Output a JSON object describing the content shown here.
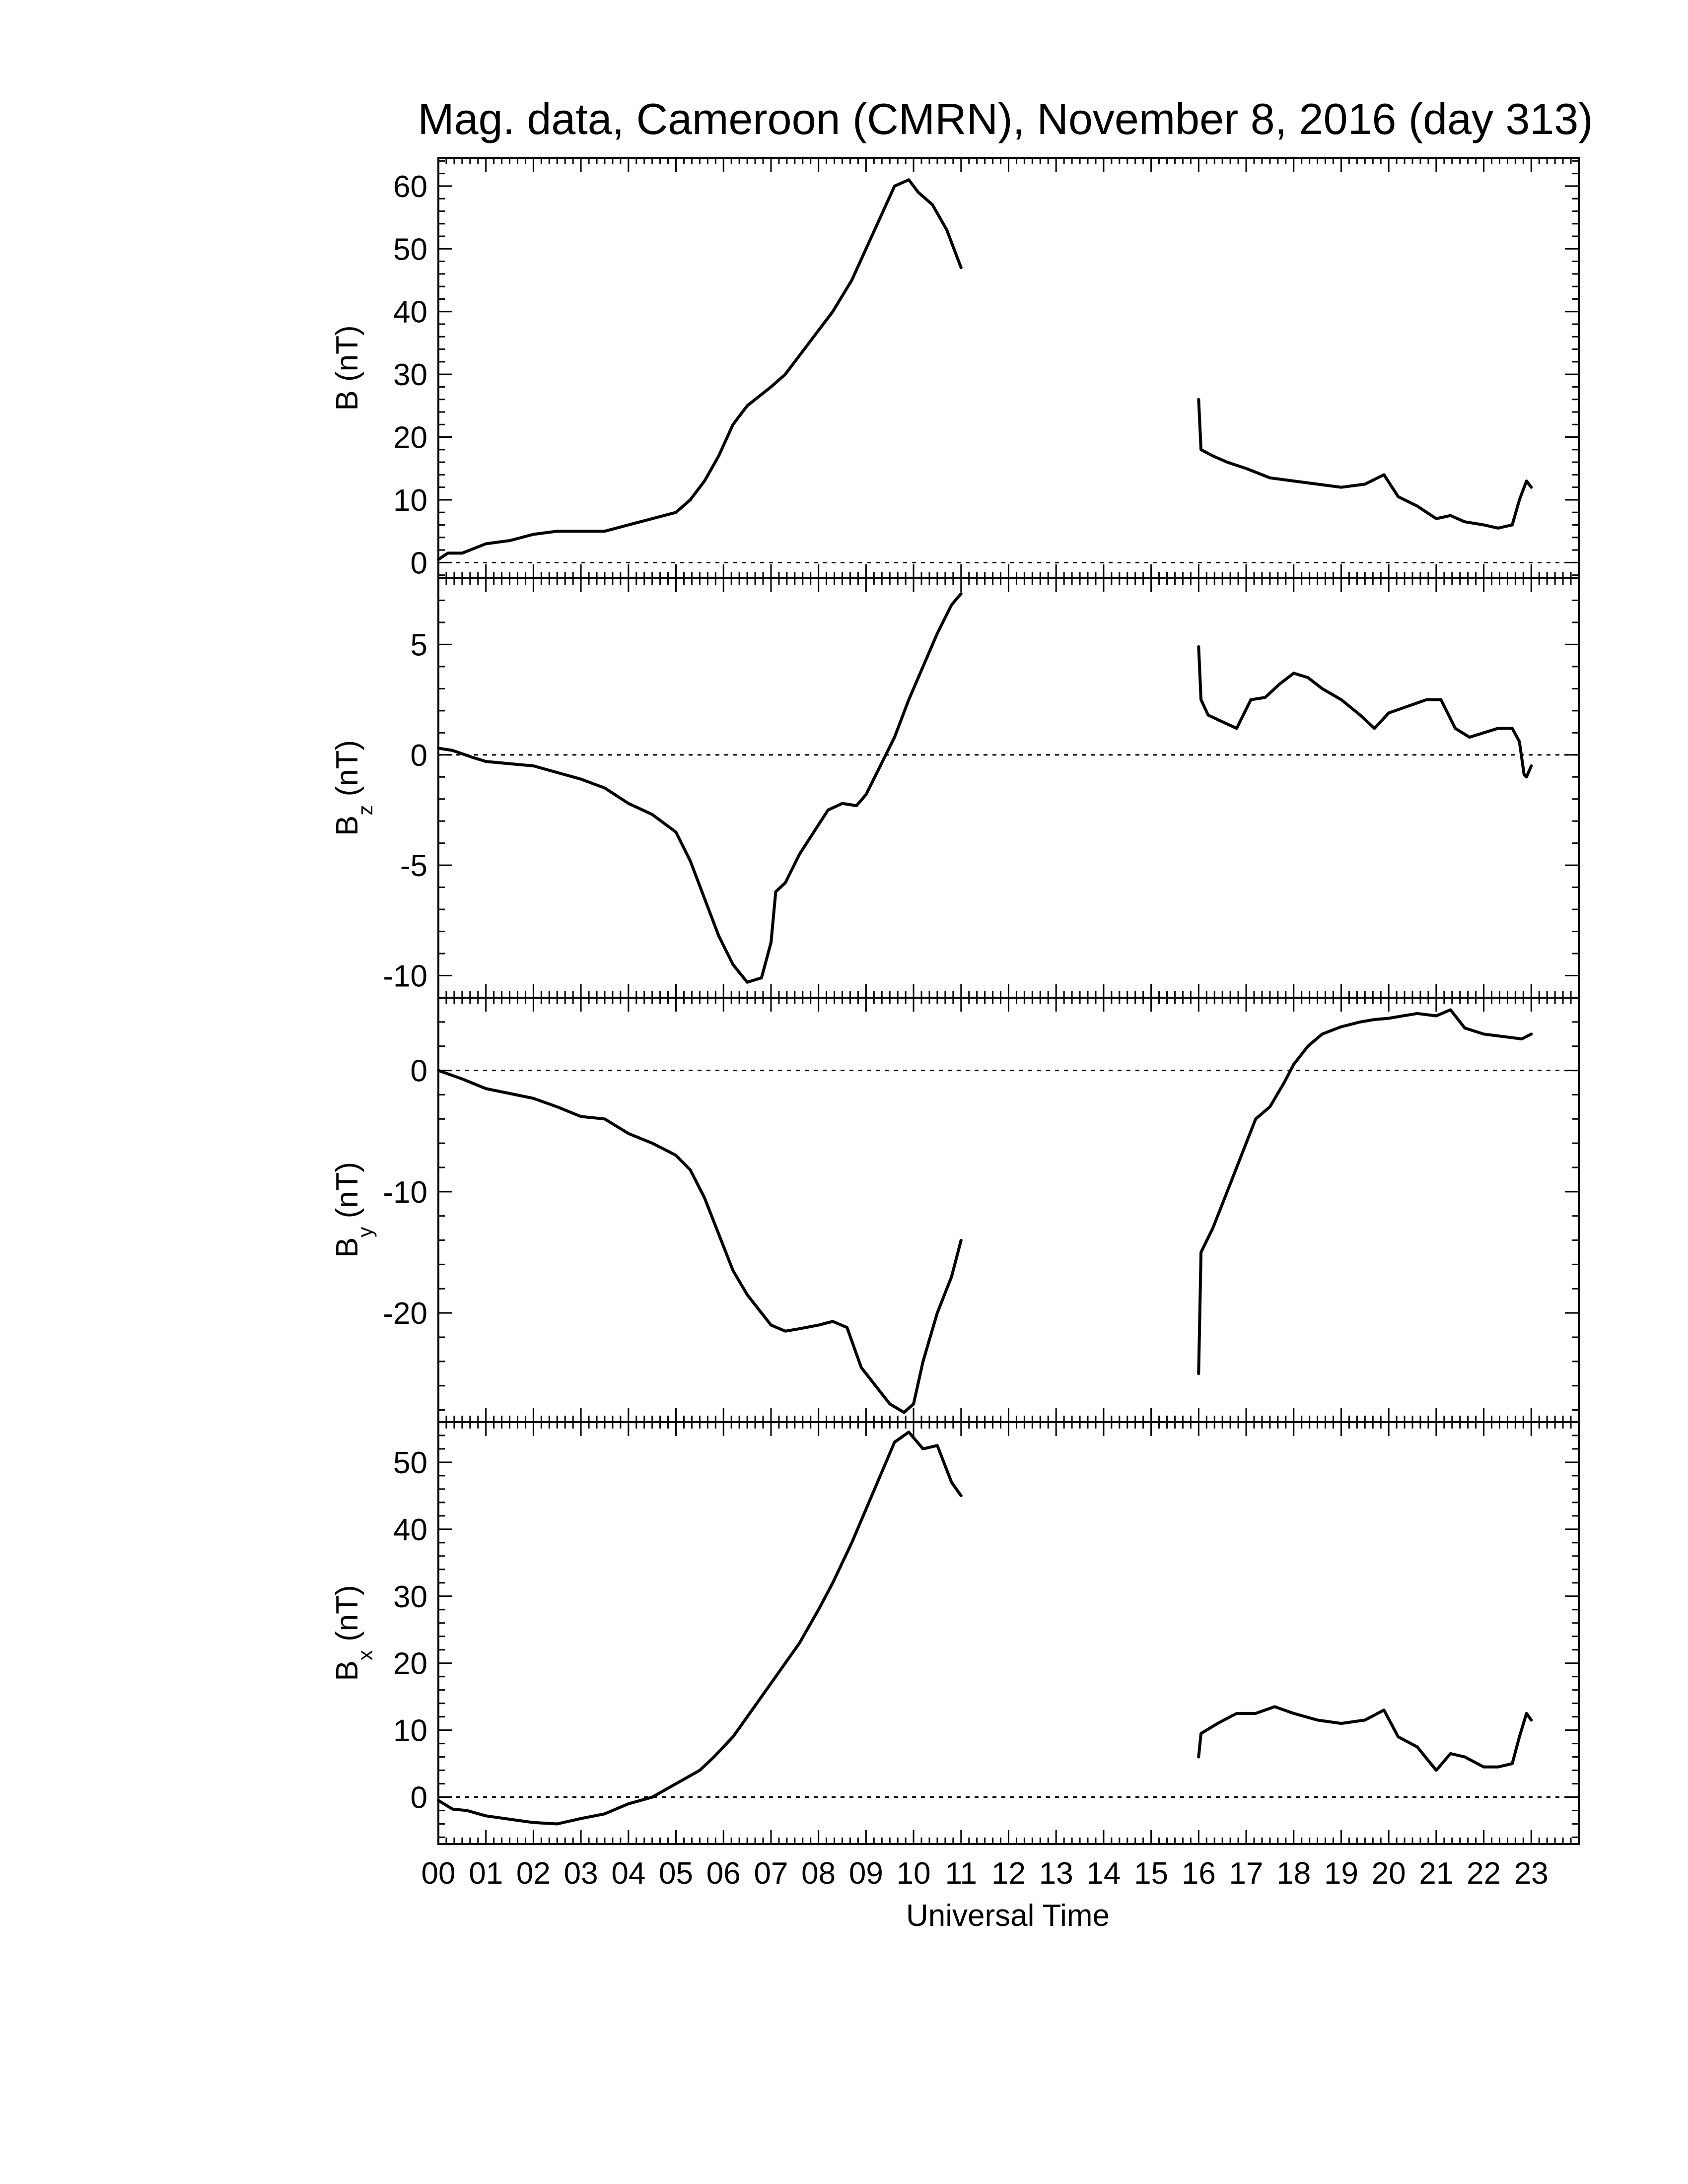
{
  "chart_data": {
    "type": "line",
    "title": "Mag. data, Cameroon (CMRN), November 8, 2016 (day 313)",
    "xlabel": "Universal Time",
    "xlim": [
      0,
      24
    ],
    "xtick_labels": [
      "00",
      "01",
      "02",
      "03",
      "04",
      "05",
      "06",
      "07",
      "08",
      "09",
      "10",
      "11",
      "12",
      "13",
      "14",
      "15",
      "16",
      "17",
      "18",
      "19",
      "20",
      "21",
      "22",
      "23"
    ],
    "data_gap_hours": [
      11.0,
      16.0
    ],
    "panels": [
      {
        "id": "B",
        "ylabel_main": "B",
        "ylabel_sub": "",
        "ylabel_unit": "(nT)",
        "ylim": [
          -2.5,
          64.5
        ],
        "yticks": [
          0,
          10,
          20,
          30,
          40,
          50,
          60
        ],
        "ytick_labels": [
          "0",
          "10",
          "20",
          "30",
          "40",
          "50",
          "60"
        ],
        "zero_line": true,
        "segments": [
          [
            [
              0,
              0.5
            ],
            [
              0.2,
              1.5
            ],
            [
              0.5,
              1.5
            ],
            [
              1,
              3
            ],
            [
              1.5,
              3.5
            ],
            [
              2,
              4.5
            ],
            [
              2.5,
              5
            ],
            [
              3,
              5
            ],
            [
              3.5,
              5
            ],
            [
              4,
              6
            ],
            [
              4.5,
              7
            ],
            [
              5,
              8
            ],
            [
              5.3,
              10
            ],
            [
              5.6,
              13
            ],
            [
              5.9,
              17
            ],
            [
              6.2,
              22
            ],
            [
              6.5,
              25
            ],
            [
              7,
              28
            ],
            [
              7.3,
              30
            ],
            [
              7.6,
              33
            ],
            [
              8,
              37
            ],
            [
              8.3,
              40
            ],
            [
              8.7,
              45
            ],
            [
              9,
              50
            ],
            [
              9.3,
              55
            ],
            [
              9.6,
              60
            ],
            [
              9.9,
              61
            ],
            [
              10.1,
              59
            ],
            [
              10.4,
              57
            ],
            [
              10.7,
              53
            ],
            [
              11,
              47
            ]
          ],
          [
            [
              16,
              26
            ],
            [
              16.05,
              18
            ],
            [
              16.3,
              17
            ],
            [
              16.6,
              16
            ],
            [
              17,
              15
            ],
            [
              17.5,
              13.5
            ],
            [
              18,
              13
            ],
            [
              18.5,
              12.5
            ],
            [
              19,
              12
            ],
            [
              19.5,
              12.5
            ],
            [
              19.9,
              14
            ],
            [
              20.2,
              10.5
            ],
            [
              20.6,
              9
            ],
            [
              21,
              7
            ],
            [
              21.3,
              7.5
            ],
            [
              21.6,
              6.5
            ],
            [
              22,
              6
            ],
            [
              22.3,
              5.5
            ],
            [
              22.6,
              6
            ],
            [
              22.75,
              10
            ],
            [
              22.9,
              13
            ],
            [
              23,
              12
            ]
          ]
        ]
      },
      {
        "id": "Bz",
        "ylabel_main": "B",
        "ylabel_sub": "z",
        "ylabel_unit": "(nT)",
        "ylim": [
          -11,
          8
        ],
        "yticks": [
          -10,
          -5,
          0,
          5
        ],
        "ytick_labels": [
          "-10",
          "-5",
          "0",
          "5"
        ],
        "zero_line": true,
        "segments": [
          [
            [
              0,
              0.3
            ],
            [
              0.3,
              0.2
            ],
            [
              0.7,
              -0.1
            ],
            [
              1,
              -0.3
            ],
            [
              1.5,
              -0.4
            ],
            [
              2,
              -0.5
            ],
            [
              2.5,
              -0.8
            ],
            [
              3,
              -1.1
            ],
            [
              3.5,
              -1.5
            ],
            [
              4,
              -2.2
            ],
            [
              4.5,
              -2.7
            ],
            [
              5,
              -3.5
            ],
            [
              5.3,
              -4.8
            ],
            [
              5.6,
              -6.5
            ],
            [
              5.9,
              -8.2
            ],
            [
              6.2,
              -9.5
            ],
            [
              6.5,
              -10.3
            ],
            [
              6.8,
              -10.1
            ],
            [
              7,
              -8.5
            ],
            [
              7.1,
              -6.2
            ],
            [
              7.3,
              -5.8
            ],
            [
              7.6,
              -4.5
            ],
            [
              7.9,
              -3.5
            ],
            [
              8.2,
              -2.5
            ],
            [
              8.5,
              -2.2
            ],
            [
              8.8,
              -2.3
            ],
            [
              9,
              -1.8
            ],
            [
              9.3,
              -0.5
            ],
            [
              9.6,
              0.8
            ],
            [
              9.9,
              2.5
            ],
            [
              10.2,
              4
            ],
            [
              10.5,
              5.5
            ],
            [
              10.8,
              6.8
            ],
            [
              11,
              7.3
            ]
          ],
          [
            [
              16,
              4.9
            ],
            [
              16.05,
              2.5
            ],
            [
              16.2,
              1.8
            ],
            [
              16.5,
              1.5
            ],
            [
              16.8,
              1.2
            ],
            [
              17.1,
              2.5
            ],
            [
              17.4,
              2.6
            ],
            [
              17.7,
              3.2
            ],
            [
              18,
              3.7
            ],
            [
              18.3,
              3.5
            ],
            [
              18.6,
              3
            ],
            [
              19,
              2.5
            ],
            [
              19.4,
              1.8
            ],
            [
              19.7,
              1.2
            ],
            [
              20,
              1.9
            ],
            [
              20.4,
              2.2
            ],
            [
              20.8,
              2.5
            ],
            [
              21.1,
              2.5
            ],
            [
              21.4,
              1.2
            ],
            [
              21.7,
              0.8
            ],
            [
              22,
              1
            ],
            [
              22.3,
              1.2
            ],
            [
              22.6,
              1.2
            ],
            [
              22.75,
              0.6
            ],
            [
              22.85,
              -0.9
            ],
            [
              22.9,
              -1
            ],
            [
              23,
              -0.5
            ]
          ]
        ]
      },
      {
        "id": "By",
        "ylabel_main": "B",
        "ylabel_sub": "y",
        "ylabel_unit": "(nT)",
        "ylim": [
          -29,
          6
        ],
        "yticks": [
          -20,
          -10,
          0
        ],
        "ytick_labels": [
          "-20",
          "-10",
          "0"
        ],
        "zero_line": true,
        "segments": [
          [
            [
              0,
              0
            ],
            [
              0.5,
              -0.7
            ],
            [
              1,
              -1.5
            ],
            [
              1.5,
              -1.9
            ],
            [
              2,
              -2.3
            ],
            [
              2.5,
              -3
            ],
            [
              3,
              -3.8
            ],
            [
              3.5,
              -4
            ],
            [
              4,
              -5.2
            ],
            [
              4.5,
              -6
            ],
            [
              5,
              -7
            ],
            [
              5.3,
              -8.2
            ],
            [
              5.6,
              -10.5
            ],
            [
              5.9,
              -13.5
            ],
            [
              6.2,
              -16.5
            ],
            [
              6.5,
              -18.5
            ],
            [
              6.8,
              -20
            ],
            [
              7,
              -21
            ],
            [
              7.3,
              -21.5
            ],
            [
              7.6,
              -21.3
            ],
            [
              8,
              -21
            ],
            [
              8.3,
              -20.7
            ],
            [
              8.6,
              -21.2
            ],
            [
              8.9,
              -24.5
            ],
            [
              9.2,
              -26
            ],
            [
              9.5,
              -27.5
            ],
            [
              9.8,
              -28.2
            ],
            [
              10,
              -27.5
            ],
            [
              10.2,
              -24
            ],
            [
              10.5,
              -20
            ],
            [
              10.8,
              -17
            ],
            [
              11,
              -14
            ]
          ],
          [
            [
              16,
              -25
            ],
            [
              16.05,
              -15
            ],
            [
              16.3,
              -13
            ],
            [
              16.6,
              -10
            ],
            [
              17,
              -6
            ],
            [
              17.2,
              -4
            ],
            [
              17.5,
              -3
            ],
            [
              17.8,
              -1
            ],
            [
              18,
              0.5
            ],
            [
              18.3,
              2
            ],
            [
              18.6,
              3
            ],
            [
              19,
              3.6
            ],
            [
              19.4,
              4
            ],
            [
              19.7,
              4.2
            ],
            [
              20,
              4.3
            ],
            [
              20.3,
              4.5
            ],
            [
              20.6,
              4.7
            ],
            [
              21,
              4.5
            ],
            [
              21.3,
              5
            ],
            [
              21.6,
              3.5
            ],
            [
              22,
              3
            ],
            [
              22.4,
              2.8
            ],
            [
              22.8,
              2.6
            ],
            [
              23,
              3
            ]
          ]
        ]
      },
      {
        "id": "Bx",
        "ylabel_main": "B",
        "ylabel_sub": "x",
        "ylabel_unit": "(nT)",
        "ylim": [
          -7,
          56
        ],
        "yticks": [
          0,
          10,
          20,
          30,
          40,
          50
        ],
        "ytick_labels": [
          "0",
          "10",
          "20",
          "30",
          "40",
          "50"
        ],
        "zero_line": true,
        "segments": [
          [
            [
              0,
              -0.5
            ],
            [
              0.3,
              -1.8
            ],
            [
              0.6,
              -2
            ],
            [
              1,
              -2.8
            ],
            [
              1.5,
              -3.3
            ],
            [
              2,
              -3.8
            ],
            [
              2.5,
              -4
            ],
            [
              3,
              -3.2
            ],
            [
              3.5,
              -2.5
            ],
            [
              4,
              -1
            ],
            [
              4.5,
              0
            ],
            [
              5,
              2
            ],
            [
              5.5,
              4
            ],
            [
              5.8,
              6
            ],
            [
              6.2,
              9
            ],
            [
              6.6,
              13
            ],
            [
              7,
              17
            ],
            [
              7.3,
              20
            ],
            [
              7.6,
              23
            ],
            [
              8,
              28
            ],
            [
              8.3,
              32
            ],
            [
              8.7,
              38
            ],
            [
              9,
              43
            ],
            [
              9.3,
              48
            ],
            [
              9.6,
              53
            ],
            [
              9.9,
              54.5
            ],
            [
              10.2,
              52
            ],
            [
              10.5,
              52.5
            ],
            [
              10.8,
              47
            ],
            [
              11,
              45
            ]
          ],
          [
            [
              16,
              6
            ],
            [
              16.05,
              9.5
            ],
            [
              16.4,
              11
            ],
            [
              16.8,
              12.5
            ],
            [
              17.2,
              12.5
            ],
            [
              17.6,
              13.5
            ],
            [
              18,
              12.5
            ],
            [
              18.5,
              11.5
            ],
            [
              19,
              11
            ],
            [
              19.5,
              11.5
            ],
            [
              19.9,
              13
            ],
            [
              20.2,
              9
            ],
            [
              20.6,
              7.5
            ],
            [
              21,
              4
            ],
            [
              21.3,
              6.5
            ],
            [
              21.6,
              6
            ],
            [
              22,
              4.5
            ],
            [
              22.3,
              4.5
            ],
            [
              22.6,
              5
            ],
            [
              22.75,
              9
            ],
            [
              22.9,
              12.5
            ],
            [
              23,
              11.5
            ]
          ]
        ]
      }
    ]
  }
}
